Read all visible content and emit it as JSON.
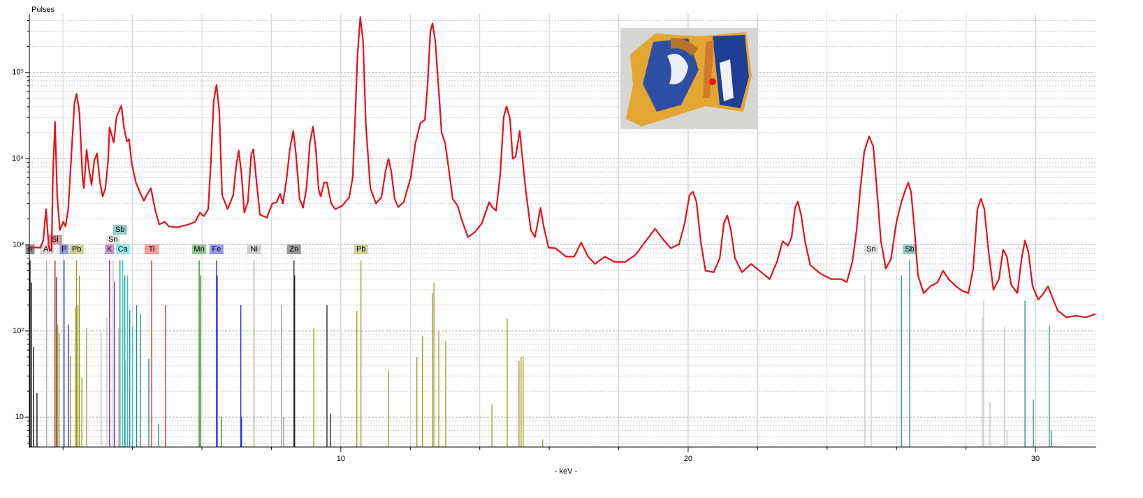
{
  "chart_data": {
    "type": "line",
    "title": "Pulses",
    "x_label": "- keV -",
    "color": "#e8101a",
    "ylog": true,
    "grid": true,
    "xlim": [
      1.03,
      31.73
    ],
    "ylim": [
      4.5,
      460000
    ],
    "xticks": [
      10,
      20,
      30
    ],
    "xminor": [
      2,
      4,
      6,
      8,
      12,
      14,
      16,
      18,
      22,
      24,
      26,
      28
    ],
    "yticks": [
      10,
      {
        "value": 100,
        "label": "10²"
      },
      {
        "value": 1000,
        "label": "10³"
      },
      {
        "value": 10000,
        "label": "10⁴"
      },
      {
        "value": 100000,
        "label": "10⁵"
      }
    ],
    "yminor": [
      5,
      6,
      7,
      8,
      9,
      20,
      30,
      40,
      50,
      60,
      70,
      80,
      90,
      200,
      300,
      400,
      500,
      600,
      700,
      800,
      900,
      2000,
      3000,
      4000,
      5000,
      6000,
      7000,
      8000,
      9000,
      20000,
      30000,
      40000,
      50000,
      60000,
      70000,
      80000,
      90000,
      200000,
      300000,
      400000
    ],
    "x": [
      1.03,
      1.35,
      1.43,
      1.51,
      1.59,
      1.67,
      1.71,
      1.77,
      1.83,
      1.91,
      2.01,
      2.07,
      2.15,
      2.25,
      2.33,
      2.39,
      2.47,
      2.56,
      2.6,
      2.68,
      2.74,
      2.82,
      2.9,
      2.98,
      3.06,
      3.14,
      3.22,
      3.3,
      3.34,
      3.4,
      3.46,
      3.54,
      3.68,
      3.76,
      3.84,
      3.9,
      3.98,
      4.1,
      4.25,
      4.33,
      4.41,
      4.53,
      4.65,
      4.77,
      4.93,
      5.05,
      5.31,
      5.61,
      5.81,
      5.94,
      6.06,
      6.18,
      6.26,
      6.34,
      6.42,
      6.5,
      6.58,
      6.74,
      6.9,
      6.98,
      7.06,
      7.14,
      7.22,
      7.32,
      7.42,
      7.48,
      7.57,
      7.67,
      7.87,
      8.03,
      8.15,
      8.25,
      8.33,
      8.43,
      8.53,
      8.63,
      8.71,
      8.81,
      8.91,
      9.01,
      9.11,
      9.2,
      9.28,
      9.36,
      9.42,
      9.52,
      9.6,
      9.72,
      9.84,
      10.04,
      10.24,
      10.34,
      10.42,
      10.48,
      10.56,
      10.64,
      10.72,
      10.85,
      11.01,
      11.17,
      11.29,
      11.37,
      11.45,
      11.55,
      11.65,
      11.81,
      12.01,
      12.15,
      12.29,
      12.42,
      12.5,
      12.58,
      12.64,
      12.72,
      12.82,
      12.9,
      13.0,
      13.1,
      13.22,
      13.36,
      13.5,
      13.66,
      13.86,
      14.06,
      14.27,
      14.37,
      14.47,
      14.59,
      14.69,
      14.77,
      14.87,
      14.95,
      15.03,
      15.15,
      15.23,
      15.33,
      15.47,
      15.59,
      15.75,
      15.84,
      15.98,
      16.18,
      16.48,
      16.72,
      16.92,
      17.12,
      17.32,
      17.61,
      17.89,
      18.19,
      18.49,
      18.79,
      19.05,
      19.26,
      19.5,
      19.74,
      19.9,
      20.04,
      20.14,
      20.24,
      20.36,
      20.5,
      20.74,
      20.91,
      21.03,
      21.13,
      21.23,
      21.35,
      21.55,
      21.81,
      22.11,
      22.35,
      22.56,
      22.72,
      22.88,
      22.98,
      23.08,
      23.16,
      23.26,
      23.36,
      23.52,
      23.82,
      24.12,
      24.41,
      24.57,
      24.73,
      24.85,
      24.97,
      25.07,
      25.21,
      25.33,
      25.45,
      25.55,
      25.69,
      25.84,
      26.0,
      26.14,
      26.26,
      26.34,
      26.42,
      26.52,
      26.62,
      26.78,
      26.98,
      27.18,
      27.34,
      27.5,
      27.71,
      27.91,
      28.07,
      28.21,
      28.33,
      28.43,
      28.53,
      28.65,
      28.79,
      28.95,
      29.07,
      29.18,
      29.3,
      29.48,
      29.6,
      29.7,
      29.8,
      29.92,
      30.08,
      30.24,
      30.36,
      30.48,
      30.64,
      30.89,
      31.17,
      31.45,
      31.73
    ],
    "values": [
      930,
      930,
      1120,
      2590,
      930,
      845,
      6590,
      26700,
      3770,
      1480,
      1850,
      1630,
      2590,
      12700,
      44300,
      56500,
      35400,
      6010,
      4540,
      12700,
      7940,
      4980,
      9570,
      11500,
      5470,
      3630,
      4540,
      9570,
      23100,
      19100,
      15300,
      30500,
      41100,
      22200,
      15800,
      16800,
      8730,
      5270,
      3770,
      3240,
      3770,
      4540,
      2590,
      1720,
      1850,
      1630,
      1600,
      1720,
      1850,
      2360,
      2150,
      2590,
      9570,
      46900,
      71900,
      35400,
      3770,
      2590,
      3770,
      7940,
      12400,
      6590,
      2360,
      3130,
      11100,
      12900,
      5470,
      2230,
      2070,
      3020,
      3130,
      3910,
      3020,
      5470,
      12700,
      21000,
      11100,
      3430,
      2690,
      4540,
      15300,
      23500,
      12700,
      4380,
      3630,
      5270,
      5270,
      3020,
      2590,
      2850,
      3560,
      6010,
      35400,
      158000,
      440000,
      229000,
      24400,
      4540,
      3020,
      3560,
      7240,
      9950,
      7240,
      3430,
      2740,
      3130,
      6010,
      15300,
      25800,
      28300,
      74600,
      303000,
      372000,
      229000,
      61900,
      20200,
      15300,
      7940,
      3430,
      2850,
      1850,
      1230,
      1400,
      1780,
      3130,
      2690,
      2500,
      6590,
      30500,
      40400,
      29400,
      9950,
      10500,
      21000,
      9950,
      4130,
      1480,
      1230,
      2690,
      1630,
      930,
      910,
      730,
      730,
      1060,
      730,
      600,
      730,
      630,
      630,
      770,
      1120,
      1540,
      1180,
      910,
      1020,
      1780,
      3770,
      4130,
      3130,
      1120,
      500,
      480,
      700,
      1780,
      2190,
      1480,
      700,
      480,
      600,
      480,
      400,
      640,
      1100,
      980,
      1230,
      2690,
      3180,
      2150,
      1120,
      580,
      460,
      400,
      400,
      370,
      640,
      1480,
      4980,
      12000,
      18100,
      13900,
      3770,
      1120,
      530,
      680,
      1850,
      3130,
      4380,
      5270,
      4060,
      1480,
      440,
      275,
      332,
      365,
      500,
      400,
      330,
      290,
      275,
      530,
      2590,
      3430,
      2590,
      845,
      300,
      400,
      880,
      730,
      345,
      275,
      680,
      1120,
      815,
      330,
      230,
      275,
      330,
      250,
      173,
      144,
      150,
      144,
      157
    ],
    "elements": [
      {
        "label": "Al",
        "color": "#a8a8a8",
        "energies": [
          1.53
        ],
        "heights": [
          660
        ]
      },
      {
        "label": "P",
        "color": "#1a1acc",
        "energies": [
          2.03,
          2.15
        ],
        "heights": [
          660,
          119
        ]
      },
      {
        "label": "K",
        "color": "#8b1a8b",
        "energies": [
          3.34,
          3.48
        ],
        "heights": [
          660,
          370
        ]
      },
      {
        "label": "Ca",
        "color": "#10d0d8",
        "energies": [
          3.72,
          3.86,
          4.0
        ],
        "heights": [
          660,
          440,
          113
        ]
      },
      {
        "label": "Ti",
        "color": "#ee2222",
        "energies": [
          4.55,
          4.95
        ],
        "heights": [
          660,
          200
        ]
      },
      {
        "label": "Mn",
        "color": "#1a8b1a",
        "energies": [
          5.92,
          5.96,
          6.56
        ],
        "heights": [
          660,
          440,
          10
        ]
      },
      {
        "label": "Fe",
        "color": "#2222ee",
        "energies": [
          6.42,
          6.44,
          7.12,
          7.14
        ],
        "heights": [
          660,
          440,
          200,
          10
        ]
      },
      {
        "label": "Ni",
        "color": "#9a9a9a",
        "energies": [
          7.5,
          8.29,
          8.35
        ],
        "heights": [
          660,
          200,
          10
        ]
      },
      {
        "label": "Zn",
        "color": "#202020",
        "energies": [
          8.65,
          8.67,
          9.6,
          9.7
        ],
        "heights": [
          660,
          440,
          200,
          11
        ]
      },
      {
        "label": "Pb",
        "color": "#9a9a22",
        "energies": [
          10.58,
          9.22,
          10.46,
          11.37,
          12.19,
          12.35,
          12.64,
          12.68,
          12.82,
          13.02,
          14.35,
          14.79,
          15.13,
          15.19,
          15.25,
          15.81
        ],
        "heights": [
          660,
          108,
          170,
          35,
          50,
          87,
          275,
          365,
          99,
          77,
          14,
          138,
          45,
          50,
          51,
          5.5
        ]
      },
      {
        "label": "Sn",
        "color": "#c4c4c4",
        "energies": [
          25.27,
          25.09,
          28.47,
          28.51,
          28.69,
          29.11,
          29.18
        ],
        "heights": [
          660,
          440,
          144,
          225,
          15,
          113,
          6.9
        ]
      },
      {
        "label": "Sb",
        "color": "#1a8b8b",
        "energies": [
          26.38,
          26.14,
          29.7,
          29.94,
          30.4,
          30.46
        ],
        "heights": [
          660,
          440,
          225,
          16,
          113,
          6.9
        ]
      },
      {
        "label": "Si",
        "color": "#8b1a1a",
        "energies": [
          1.77,
          1.81
        ],
        "heights": [
          660,
          420
        ]
      },
      {
        "label": "Pb",
        "color": "#9a9a22",
        "energies": [
          2.39,
          1.85,
          1.89,
          2.21,
          2.35,
          2.43,
          2.47,
          2.54,
          2.68
        ],
        "heights": [
          660,
          119,
          94,
          51,
          190,
          200,
          440,
          29,
          108
        ]
      },
      {
        "label": "Sn",
        "color": "#c4c4c4",
        "energies": [
          3.44,
          3.1,
          3.26,
          3.6,
          3.8
        ],
        "heights": [
          660,
          99,
          144,
          108,
          45
        ]
      },
      {
        "label": "Sb",
        "color": "#1a8b8b",
        "energies": [
          3.64,
          3.78,
          3.92,
          4.12,
          4.23,
          4.47,
          4.75
        ],
        "heights": [
          660,
          440,
          173,
          200,
          158,
          48,
          8.4
        ]
      },
      {
        "label": "n",
        "color": "#000000",
        "energies": [
          1.05,
          1.09,
          1.15,
          1.25
        ],
        "heights": [
          660,
          365,
          66,
          19
        ]
      }
    ]
  }
}
